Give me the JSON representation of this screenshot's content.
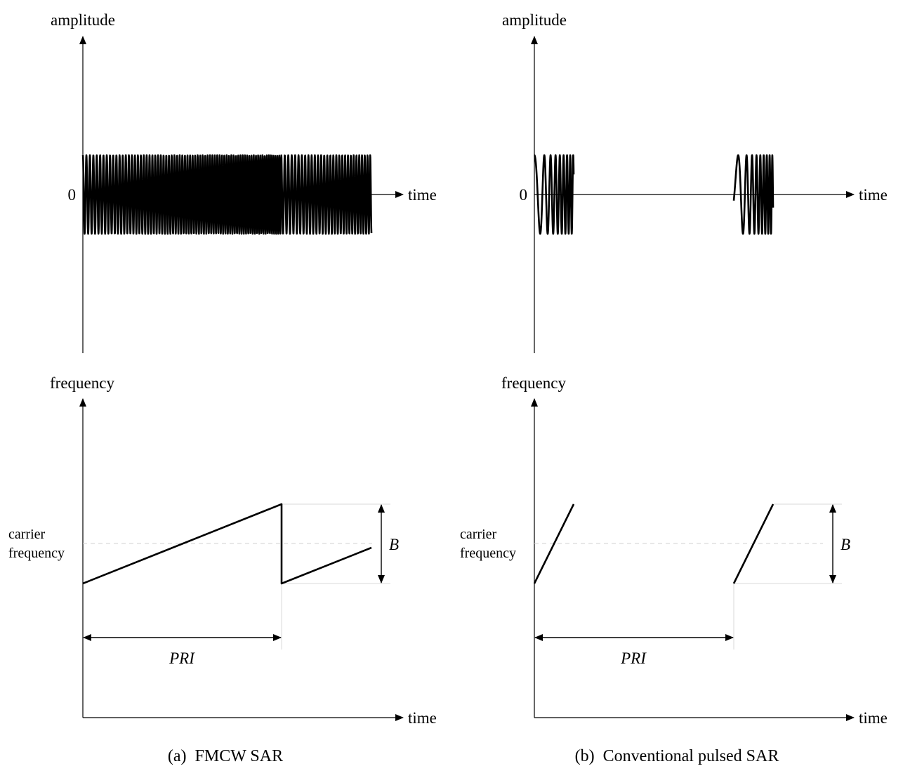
{
  "panels": [
    {
      "id": "a",
      "caption": "(a) FMCW SAR",
      "amplitude_axis_label": "amplitude",
      "zero_label": "0",
      "time_label_top": "time",
      "frequency_axis_label": "frequency",
      "carrier_label_line1": "carrier",
      "carrier_label_line2": "frequency",
      "bandwidth_label": "B",
      "pri_label": "PRI",
      "time_label_bottom": "time"
    },
    {
      "id": "b",
      "caption": "(b) Conventional pulsed SAR",
      "amplitude_axis_label": "amplitude",
      "zero_label": "0",
      "time_label_top": "time",
      "frequency_axis_label": "frequency",
      "carrier_label_line1": "carrier",
      "carrier_label_line2": "frequency",
      "bandwidth_label": "B",
      "pri_label": "PRI",
      "time_label_bottom": "time"
    }
  ],
  "colors": {
    "ink": "#000000",
    "guide": "#d9d9d9",
    "carrier_dash": "#d0d0d0"
  }
}
